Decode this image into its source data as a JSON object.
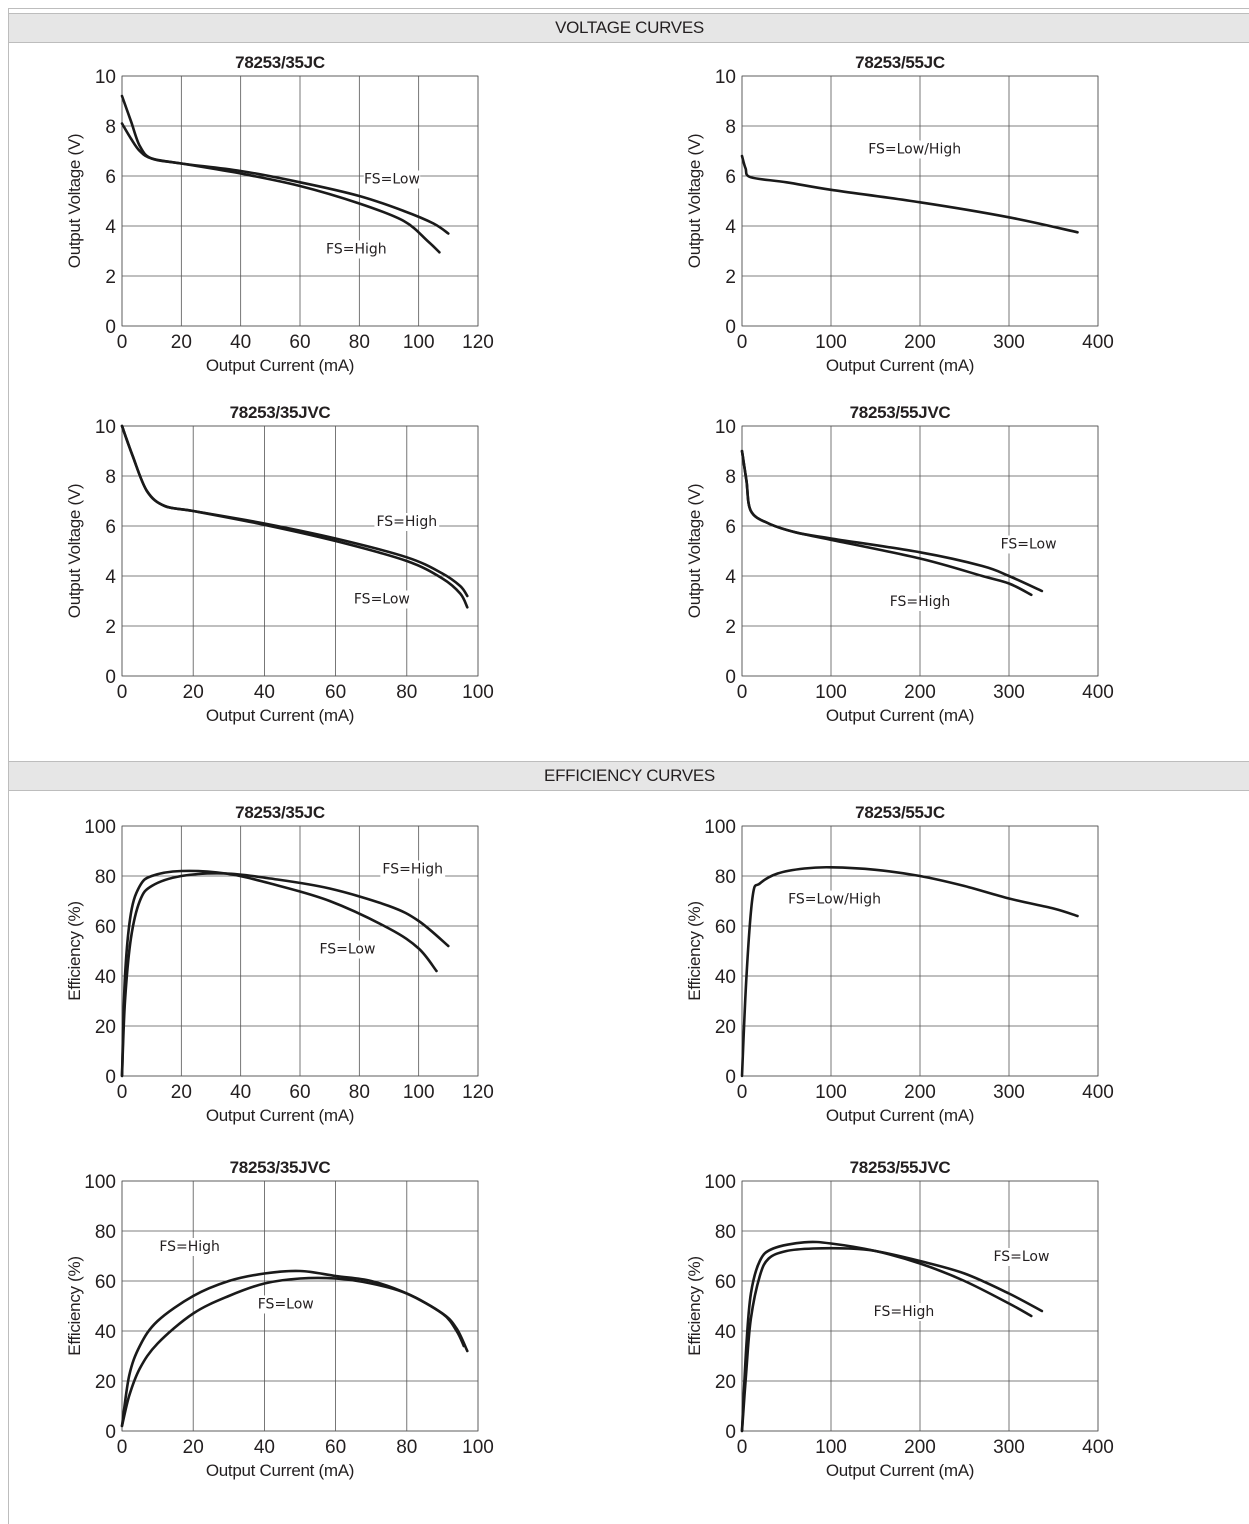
{
  "sections": {
    "voltage": "VOLTAGE CURVES",
    "efficiency": "EFFICIENCY CURVES"
  },
  "chart_data": [
    {
      "id": "v35jc",
      "type": "line",
      "title": "78253/35JC",
      "xlabel": "Output Current (mA)",
      "ylabel": "Output Voltage (V)",
      "xlim": [
        0,
        120
      ],
      "ylim": [
        0,
        10
      ],
      "xticks": [
        0,
        20,
        40,
        60,
        80,
        100,
        120
      ],
      "yticks": [
        0,
        2,
        4,
        6,
        8,
        10
      ],
      "grid": true,
      "series": [
        {
          "name": "FS=Low",
          "points": [
            [
              0,
              8.1
            ],
            [
              3,
              7.5
            ],
            [
              6,
              7.0
            ],
            [
              10,
              6.7
            ],
            [
              20,
              6.5
            ],
            [
              40,
              6.2
            ],
            [
              60,
              5.75
            ],
            [
              80,
              5.2
            ],
            [
              95,
              4.6
            ],
            [
              105,
              4.1
            ],
            [
              110,
              3.7
            ]
          ]
        },
        {
          "name": "FS=High",
          "points": [
            [
              0,
              9.2
            ],
            [
              3,
              8.2
            ],
            [
              6,
              7.2
            ],
            [
              10,
              6.7
            ],
            [
              20,
              6.5
            ],
            [
              40,
              6.1
            ],
            [
              60,
              5.6
            ],
            [
              80,
              4.9
            ],
            [
              95,
              4.2
            ],
            [
              103,
              3.4
            ],
            [
              107,
              2.95
            ]
          ]
        }
      ],
      "annotations": [
        {
          "text": "FS=Low",
          "x": 91,
          "y": 5.7,
          "anchor": "middle"
        },
        {
          "text": "FS=High",
          "x": 79,
          "y": 2.9,
          "anchor": "middle"
        }
      ]
    },
    {
      "id": "v55jc",
      "type": "line",
      "title": "78253/55JC",
      "xlabel": "Output Current (mA)",
      "ylabel": "Output Voltage (V)",
      "xlim": [
        0,
        400
      ],
      "ylim": [
        0,
        10
      ],
      "xticks": [
        0,
        100,
        200,
        300,
        400
      ],
      "yticks": [
        0,
        2,
        4,
        6,
        8,
        10
      ],
      "grid": true,
      "series": [
        {
          "name": "FS=Low/High",
          "points": [
            [
              0,
              6.8
            ],
            [
              4,
              6.3
            ],
            [
              10,
              5.95
            ],
            [
              50,
              5.75
            ],
            [
              100,
              5.45
            ],
            [
              200,
              4.95
            ],
            [
              300,
              4.35
            ],
            [
              377,
              3.75
            ]
          ]
        }
      ],
      "annotations": [
        {
          "text": "FS=Low/High",
          "x": 194,
          "y": 6.9,
          "anchor": "middle"
        }
      ]
    },
    {
      "id": "v35jvc",
      "type": "line",
      "title": "78253/35JVC",
      "xlabel": "Output Current (mA)",
      "ylabel": "Output Voltage (V)",
      "xlim": [
        0,
        100
      ],
      "ylim": [
        0,
        10
      ],
      "xticks": [
        0,
        20,
        40,
        60,
        80,
        100
      ],
      "yticks": [
        0,
        2,
        4,
        6,
        8,
        10
      ],
      "grid": true,
      "series": [
        {
          "name": "FS=High",
          "points": [
            [
              0,
              10.0
            ],
            [
              3,
              8.8
            ],
            [
              7,
              7.4
            ],
            [
              12,
              6.8
            ],
            [
              20,
              6.6
            ],
            [
              40,
              6.1
            ],
            [
              60,
              5.5
            ],
            [
              80,
              4.75
            ],
            [
              90,
              4.1
            ],
            [
              95,
              3.6
            ],
            [
              97,
              3.2
            ]
          ]
        },
        {
          "name": "FS=Low",
          "points": [
            [
              0,
              10.0
            ],
            [
              3,
              8.8
            ],
            [
              7,
              7.4
            ],
            [
              12,
              6.8
            ],
            [
              20,
              6.6
            ],
            [
              40,
              6.05
            ],
            [
              60,
              5.4
            ],
            [
              80,
              4.6
            ],
            [
              90,
              3.9
            ],
            [
              95,
              3.3
            ],
            [
              97,
              2.75
            ]
          ]
        }
      ],
      "annotations": [
        {
          "text": "FS=High",
          "x": 80,
          "y": 6.0,
          "anchor": "middle"
        },
        {
          "text": "FS=Low",
          "x": 73,
          "y": 2.9,
          "anchor": "middle"
        }
      ]
    },
    {
      "id": "v55jvc",
      "type": "line",
      "title": "78253/55JVC",
      "xlabel": "Output Current (mA)",
      "ylabel": "Output Voltage (V)",
      "xlim": [
        0,
        400
      ],
      "ylim": [
        0,
        10
      ],
      "xticks": [
        0,
        100,
        200,
        300,
        400
      ],
      "yticks": [
        0,
        2,
        4,
        6,
        8,
        10
      ],
      "grid": true,
      "series": [
        {
          "name": "FS=Low",
          "points": [
            [
              0,
              9.0
            ],
            [
              5,
              7.8
            ],
            [
              10,
              6.6
            ],
            [
              30,
              6.1
            ],
            [
              60,
              5.75
            ],
            [
              100,
              5.5
            ],
            [
              200,
              4.95
            ],
            [
              270,
              4.4
            ],
            [
              300,
              4.0
            ],
            [
              337,
              3.4
            ]
          ]
        },
        {
          "name": "FS=High",
          "points": [
            [
              0,
              9.0
            ],
            [
              5,
              7.8
            ],
            [
              10,
              6.6
            ],
            [
              30,
              6.1
            ],
            [
              60,
              5.75
            ],
            [
              100,
              5.45
            ],
            [
              200,
              4.7
            ],
            [
              270,
              4.0
            ],
            [
              300,
              3.7
            ],
            [
              325,
              3.25
            ]
          ]
        }
      ],
      "annotations": [
        {
          "text": "FS=Low",
          "x": 322,
          "y": 5.1,
          "anchor": "middle"
        },
        {
          "text": "FS=High",
          "x": 200,
          "y": 2.8,
          "anchor": "middle"
        }
      ]
    },
    {
      "id": "e35jc",
      "type": "line",
      "title": "78253/35JC",
      "xlabel": "Output Current (mA)",
      "ylabel": "Efficiency (%)",
      "xlim": [
        0,
        120
      ],
      "ylim": [
        0,
        100
      ],
      "xticks": [
        0,
        20,
        40,
        60,
        80,
        100,
        120
      ],
      "yticks": [
        0,
        20,
        40,
        60,
        80,
        100
      ],
      "grid": true,
      "series": [
        {
          "name": "FS=High",
          "points": [
            [
              0,
              0
            ],
            [
              1,
              30
            ],
            [
              3,
              55
            ],
            [
              6,
              70
            ],
            [
              10,
              76
            ],
            [
              20,
              80
            ],
            [
              35,
              81
            ],
            [
              50,
              79
            ],
            [
              70,
              75
            ],
            [
              90,
              68
            ],
            [
              100,
              62
            ],
            [
              110,
              52
            ]
          ]
        },
        {
          "name": "FS=Low",
          "points": [
            [
              0,
              0
            ],
            [
              1,
              40
            ],
            [
              3,
              65
            ],
            [
              6,
              76
            ],
            [
              10,
              80
            ],
            [
              20,
              82
            ],
            [
              35,
              81
            ],
            [
              50,
              77
            ],
            [
              70,
              70
            ],
            [
              90,
              59
            ],
            [
              100,
              51
            ],
            [
              106,
              42
            ]
          ]
        }
      ],
      "annotations": [
        {
          "text": "FS=High",
          "x": 98,
          "y": 81,
          "anchor": "middle"
        },
        {
          "text": "FS=Low",
          "x": 76,
          "y": 49,
          "anchor": "middle"
        }
      ]
    },
    {
      "id": "e55jc",
      "type": "line",
      "title": "78253/55JC",
      "xlabel": "Output Current (mA)",
      "ylabel": "Efficiency (%)",
      "xlim": [
        0,
        400
      ],
      "ylim": [
        0,
        100
      ],
      "xticks": [
        0,
        100,
        200,
        300,
        400
      ],
      "yticks": [
        0,
        20,
        40,
        60,
        80,
        100
      ],
      "grid": true,
      "series": [
        {
          "name": "FS=Low/High",
          "points": [
            [
              0,
              0
            ],
            [
              5,
              40
            ],
            [
              12,
              72
            ],
            [
              20,
              77
            ],
            [
              40,
              81
            ],
            [
              70,
              83
            ],
            [
              100,
              83.5
            ],
            [
              150,
              82.5
            ],
            [
              200,
              80
            ],
            [
              250,
              76
            ],
            [
              300,
              71
            ],
            [
              350,
              67
            ],
            [
              377,
              64
            ]
          ]
        }
      ],
      "annotations": [
        {
          "text": "FS=Low/High",
          "x": 104,
          "y": 69,
          "anchor": "middle"
        }
      ]
    },
    {
      "id": "e35jvc",
      "type": "line",
      "title": "78253/35JVC",
      "xlabel": "Output Current (mA)",
      "ylabel": "Efficiency (%)",
      "xlim": [
        0,
        100
      ],
      "ylim": [
        0,
        100
      ],
      "xticks": [
        0,
        20,
        40,
        60,
        80,
        100
      ],
      "yticks": [
        0,
        20,
        40,
        60,
        80,
        100
      ],
      "grid": true,
      "series": [
        {
          "name": "FS=High",
          "points": [
            [
              0,
              2
            ],
            [
              2,
              22
            ],
            [
              5,
              34
            ],
            [
              10,
              44
            ],
            [
              20,
              54
            ],
            [
              30,
              60
            ],
            [
              40,
              63
            ],
            [
              50,
              64
            ],
            [
              60,
              62
            ],
            [
              70,
              60
            ],
            [
              80,
              55
            ],
            [
              90,
              47
            ],
            [
              94,
              40
            ],
            [
              96,
              34
            ]
          ]
        },
        {
          "name": "FS=Low",
          "points": [
            [
              0,
              2
            ],
            [
              2,
              14
            ],
            [
              5,
              25
            ],
            [
              10,
              35
            ],
            [
              20,
              47
            ],
            [
              30,
              54
            ],
            [
              40,
              59
            ],
            [
              50,
              61
            ],
            [
              60,
              61
            ],
            [
              70,
              59
            ],
            [
              80,
              55
            ],
            [
              90,
              47
            ],
            [
              94,
              41
            ],
            [
              97,
              32
            ]
          ]
        }
      ],
      "annotations": [
        {
          "text": "FS=High",
          "x": 19,
          "y": 72,
          "anchor": "middle"
        },
        {
          "text": "FS=Low",
          "x": 46,
          "y": 49,
          "anchor": "middle"
        }
      ]
    },
    {
      "id": "e55jvc",
      "type": "line",
      "title": "78253/55JVC",
      "xlabel": "Output Current (mA)",
      "ylabel": "Efficiency (%)",
      "xlim": [
        0,
        400
      ],
      "ylim": [
        0,
        100
      ],
      "xticks": [
        0,
        100,
        200,
        300,
        400
      ],
      "yticks": [
        0,
        20,
        40,
        60,
        80,
        100
      ],
      "grid": true,
      "series": [
        {
          "name": "FS=Low",
          "points": [
            [
              0,
              0
            ],
            [
              5,
              25
            ],
            [
              10,
              45
            ],
            [
              20,
              62
            ],
            [
              30,
              69
            ],
            [
              50,
              72
            ],
            [
              80,
              73
            ],
            [
              120,
              73
            ],
            [
              150,
              72
            ],
            [
              200,
              68
            ],
            [
              250,
              63
            ],
            [
              300,
              55
            ],
            [
              337,
              48
            ]
          ]
        },
        {
          "name": "FS=High",
          "points": [
            [
              0,
              0
            ],
            [
              5,
              35
            ],
            [
              10,
              55
            ],
            [
              20,
              68
            ],
            [
              35,
              73
            ],
            [
              70,
              75.5
            ],
            [
              100,
              75
            ],
            [
              150,
              72
            ],
            [
              200,
              67
            ],
            [
              250,
              60
            ],
            [
              300,
              51
            ],
            [
              325,
              46
            ]
          ]
        }
      ],
      "annotations": [
        {
          "text": "FS=Low",
          "x": 314,
          "y": 68,
          "anchor": "middle"
        },
        {
          "text": "FS=High",
          "x": 182,
          "y": 46,
          "anchor": "middle"
        }
      ]
    }
  ]
}
